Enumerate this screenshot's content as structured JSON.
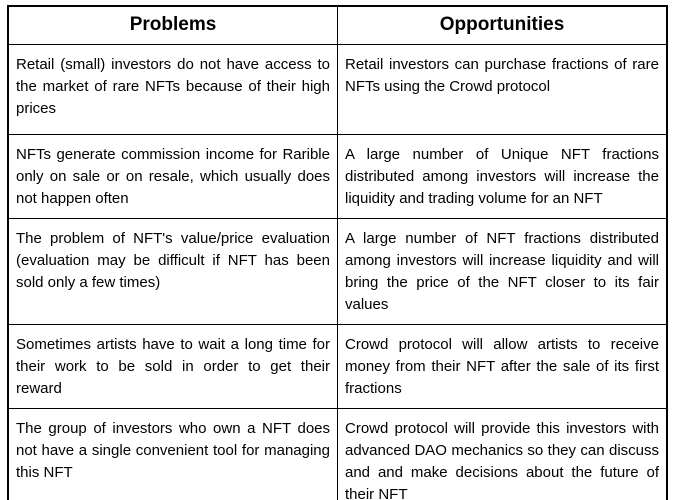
{
  "table": {
    "headers": [
      {
        "label": "Problems"
      },
      {
        "label": "Opportunities"
      }
    ],
    "rows": [
      {
        "problem": "Retail (small) investors do not have access to the market of rare NFTs because of their high prices",
        "opportunity": "Retail investors can purchase fractions of rare NFTs using the Crowd protocol"
      },
      {
        "problem": "NFTs generate commission income for Rarible only on sale or on resale, which usually does not happen often",
        "opportunity": "A large number of Unique NFT fractions distributed among investors will increase the liquidity and trading volume for an NFT"
      },
      {
        "problem": "The problem of NFT's value/price evaluation (evaluation may be difficult if NFT has been sold only a few times)",
        "opportunity": "A large number of NFT fractions distributed among investors will increase liquidity and will bring the price of the NFT closer to its fair values"
      },
      {
        "problem": "Sometimes artists have to wait a long time for their work to be sold in order to get their reward",
        "opportunity": "Crowd protocol will allow artists to receive money from their NFT after the sale of its first fractions"
      },
      {
        "problem": "The group of investors who own a NFT does not have a single convenient tool for managing this NFT",
        "opportunity": "Crowd protocol will provide this investors with advanced DAO mechanics so they can discuss and and make decisions about the future of their NFT"
      }
    ],
    "colors": {
      "border": "#000000",
      "text": "#000000",
      "background": "#ffffff"
    }
  }
}
